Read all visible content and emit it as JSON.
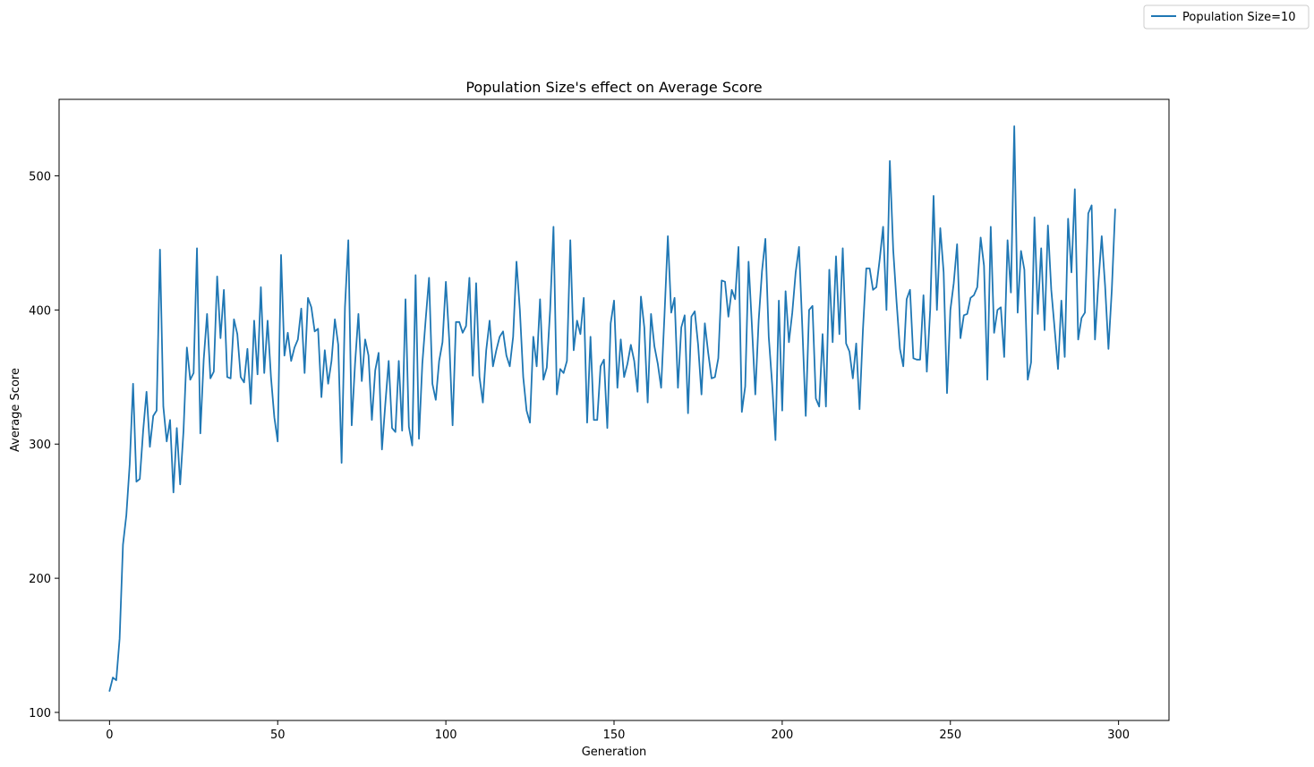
{
  "chart_data": {
    "type": "line",
    "title": "Population Size's effect on Average Score",
    "xlabel": "Generation",
    "ylabel": "Average Score",
    "xlim": [
      -15,
      315
    ],
    "ylim": [
      94,
      557
    ],
    "x_ticks": [
      0,
      50,
      100,
      150,
      200,
      250,
      300
    ],
    "y_ticks": [
      100,
      200,
      300,
      400,
      500
    ],
    "legend_position": "top-right",
    "series": [
      {
        "name": "Population Size=10",
        "color": "#1f77b4",
        "x_start": 0,
        "values": [
          116,
          126,
          124,
          155,
          225,
          247,
          285,
          345,
          272,
          274,
          310,
          339,
          298,
          321,
          325,
          445,
          328,
          302,
          318,
          264,
          312,
          270,
          310,
          372,
          348,
          353,
          446,
          308,
          363,
          397,
          349,
          354,
          425,
          379,
          415,
          350,
          349,
          393,
          382,
          350,
          346,
          371,
          330,
          392,
          352,
          417,
          353,
          392,
          350,
          320,
          302,
          441,
          366,
          383,
          362,
          372,
          378,
          401,
          353,
          409,
          402,
          384,
          386,
          335,
          370,
          345,
          362,
          393,
          374,
          286,
          402,
          452,
          314,
          360,
          397,
          347,
          378,
          366,
          318,
          355,
          368,
          296,
          330,
          362,
          312,
          309,
          362,
          310,
          408,
          313,
          299,
          426,
          304,
          360,
          393,
          424,
          345,
          333,
          362,
          376,
          421,
          378,
          314,
          391,
          391,
          383,
          388,
          424,
          351,
          420,
          350,
          331,
          370,
          392,
          358,
          370,
          380,
          384,
          366,
          358,
          380,
          436,
          400,
          350,
          325,
          316,
          380,
          358,
          408,
          348,
          357,
          400,
          462,
          337,
          356,
          353,
          362,
          452,
          370,
          392,
          382,
          409,
          316,
          380,
          318,
          318,
          358,
          363,
          312,
          390,
          407,
          342,
          378,
          350,
          360,
          374,
          362,
          339,
          410,
          387,
          331,
          397,
          373,
          360,
          342,
          396,
          455,
          398,
          409,
          342,
          387,
          396,
          323,
          395,
          399,
          374,
          337,
          390,
          368,
          349,
          350,
          364,
          422,
          421,
          395,
          415,
          408,
          447,
          324,
          343,
          436,
          388,
          337,
          392,
          429,
          453,
          380,
          345,
          303,
          407,
          325,
          414,
          376,
          398,
          428,
          447,
          386,
          321,
          400,
          403,
          334,
          328,
          382,
          328,
          430,
          376,
          440,
          382,
          446,
          375,
          369,
          349,
          375,
          326,
          385,
          431,
          431,
          415,
          417,
          438,
          462,
          400,
          511,
          445,
          406,
          371,
          358,
          408,
          415,
          364,
          363,
          363,
          411,
          354,
          400,
          485,
          400,
          461,
          428,
          338,
          400,
          420,
          449,
          379,
          396,
          397,
          409,
          411,
          417,
          454,
          433,
          348,
          462,
          383,
          400,
          402,
          365,
          452,
          413,
          537,
          398,
          444,
          430,
          348,
          361,
          469,
          397,
          446,
          385,
          463,
          415,
          386,
          356,
          407,
          365,
          468,
          428,
          490,
          378,
          394,
          398,
          472,
          478,
          378,
          420,
          455,
          418,
          371,
          415,
          475
        ]
      }
    ]
  }
}
